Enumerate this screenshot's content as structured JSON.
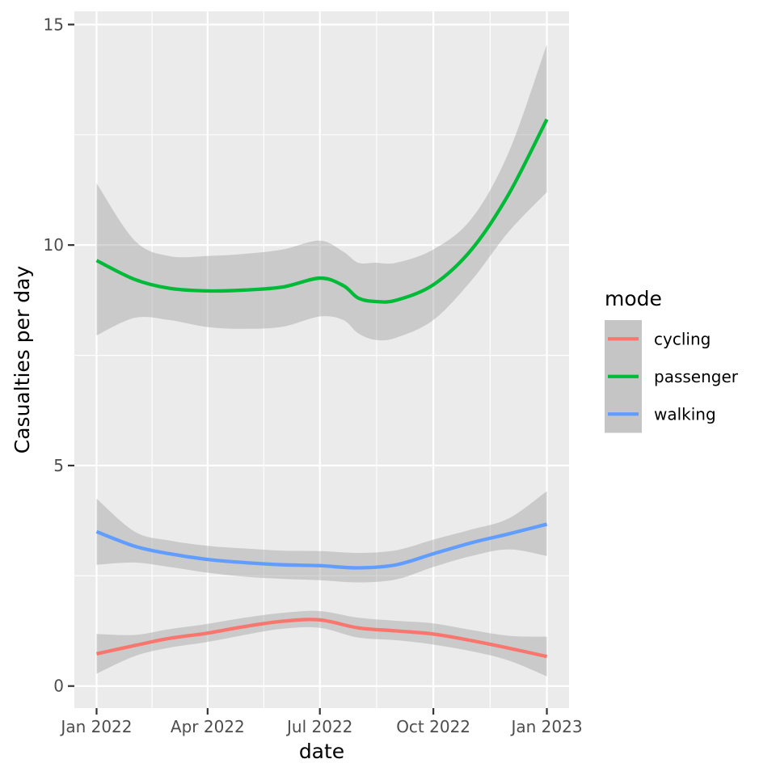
{
  "chart_data": {
    "type": "line",
    "xlabel": "date",
    "ylabel": "Casualties per day",
    "x_ticks": [
      "2022-01-01",
      "2022-04-01",
      "2022-07-01",
      "2022-10-01",
      "2023-01-01"
    ],
    "x_tick_labels": [
      "Jan 2022",
      "Apr 2022",
      "Jul 2022",
      "Oct 2022",
      "Jan 2023"
    ],
    "y_ticks": [
      0,
      5,
      10,
      15
    ],
    "y_tick_labels": [
      "0",
      "5",
      "10",
      "15"
    ],
    "xlim": [
      "2021-12-14",
      "2023-01-19"
    ],
    "ylim": [
      -0.5,
      15.3
    ],
    "grid": true,
    "confidence_band": true,
    "legend": {
      "title": "mode",
      "position": "right"
    },
    "series": [
      {
        "name": "cycling",
        "color": "#F8766D",
        "x": [
          "2022-01-01",
          "2022-02-01",
          "2022-03-01",
          "2022-04-01",
          "2022-05-01",
          "2022-06-01",
          "2022-07-01",
          "2022-08-01",
          "2022-09-01",
          "2022-10-01",
          "2022-11-01",
          "2022-12-01",
          "2023-01-01"
        ],
        "y": [
          0.73,
          0.92,
          1.08,
          1.2,
          1.35,
          1.47,
          1.5,
          1.32,
          1.25,
          1.18,
          1.03,
          0.86,
          0.67
        ],
        "lower": [
          0.28,
          0.68,
          0.87,
          1.0,
          1.16,
          1.3,
          1.32,
          1.1,
          1.04,
          0.94,
          0.79,
          0.58,
          0.22
        ],
        "upper": [
          1.18,
          1.16,
          1.29,
          1.41,
          1.55,
          1.66,
          1.7,
          1.55,
          1.48,
          1.42,
          1.27,
          1.14,
          1.12
        ]
      },
      {
        "name": "passenger",
        "color": "#00BA38",
        "x": [
          "2022-01-01",
          "2022-02-01",
          "2022-03-01",
          "2022-04-01",
          "2022-05-01",
          "2022-06-01",
          "2022-07-01",
          "2022-07-20",
          "2022-08-01",
          "2022-08-15",
          "2022-09-01",
          "2022-10-01",
          "2022-11-01",
          "2022-12-01",
          "2023-01-01"
        ],
        "y": [
          9.65,
          9.22,
          9.02,
          8.96,
          8.98,
          9.05,
          9.25,
          9.08,
          8.8,
          8.72,
          8.75,
          9.1,
          9.9,
          11.15,
          12.85
        ],
        "lower": [
          7.95,
          8.35,
          8.3,
          8.14,
          8.1,
          8.15,
          8.38,
          8.3,
          8.0,
          7.85,
          7.9,
          8.3,
          9.2,
          10.3,
          11.2
        ],
        "upper": [
          11.4,
          10.1,
          9.75,
          9.75,
          9.8,
          9.9,
          10.1,
          9.85,
          9.6,
          9.6,
          9.6,
          9.9,
          10.6,
          12.1,
          14.55
        ]
      },
      {
        "name": "walking",
        "color": "#619CFF",
        "x": [
          "2022-01-01",
          "2022-02-01",
          "2022-03-01",
          "2022-04-01",
          "2022-05-01",
          "2022-06-01",
          "2022-07-01",
          "2022-08-01",
          "2022-09-01",
          "2022-10-01",
          "2022-11-01",
          "2022-12-01",
          "2023-01-01"
        ],
        "y": [
          3.5,
          3.17,
          3.0,
          2.87,
          2.8,
          2.75,
          2.73,
          2.68,
          2.75,
          3.0,
          3.25,
          3.45,
          3.67
        ],
        "lower": [
          2.75,
          2.8,
          2.7,
          2.57,
          2.48,
          2.43,
          2.4,
          2.35,
          2.42,
          2.7,
          2.95,
          3.1,
          2.95
        ],
        "upper": [
          4.25,
          3.5,
          3.3,
          3.18,
          3.12,
          3.07,
          3.06,
          3.02,
          3.08,
          3.32,
          3.55,
          3.8,
          4.42
        ]
      }
    ]
  }
}
